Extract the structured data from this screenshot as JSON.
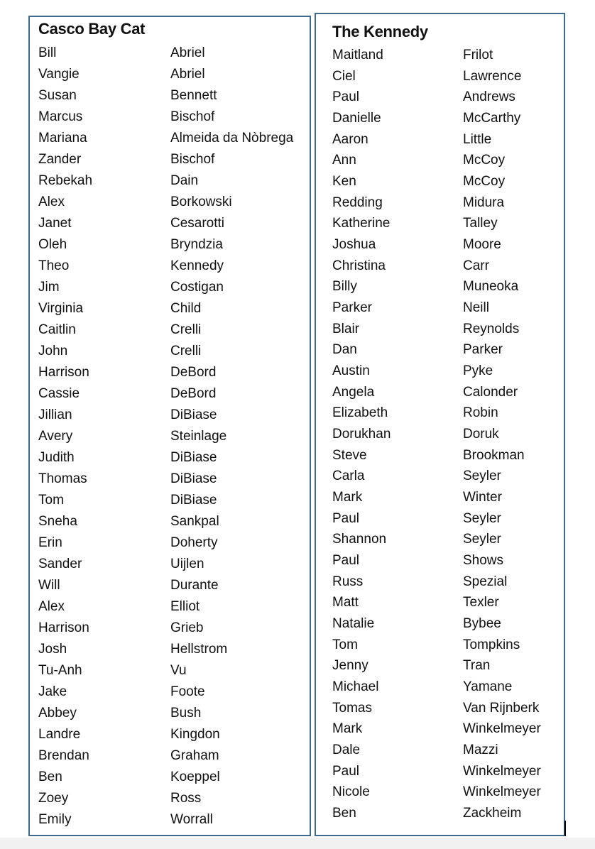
{
  "lists": [
    {
      "title": "Casco Bay Cat",
      "rows": [
        [
          "Bill",
          "Abriel"
        ],
        [
          "Vangie",
          "Abriel"
        ],
        [
          "Susan",
          "Bennett"
        ],
        [
          "Marcus",
          "Bischof"
        ],
        [
          "Mariana",
          "Almeida da Nòbrega"
        ],
        [
          "Zander",
          "Bischof"
        ],
        [
          "Rebekah",
          "Dain"
        ],
        [
          "Alex",
          "Borkowski"
        ],
        [
          "Janet",
          "Cesarotti"
        ],
        [
          "Oleh",
          "Bryndzia"
        ],
        [
          "Theo",
          "Kennedy"
        ],
        [
          "Jim",
          "Costigan"
        ],
        [
          "Virginia",
          "Child"
        ],
        [
          "Caitlin",
          "Crelli"
        ],
        [
          "John",
          "Crelli"
        ],
        [
          "Harrison",
          "DeBord"
        ],
        [
          "Cassie",
          "DeBord"
        ],
        [
          "Jillian",
          "DiBiase"
        ],
        [
          "Avery",
          "Steinlage"
        ],
        [
          "Judith",
          "DiBiase"
        ],
        [
          "Thomas",
          "DiBiase"
        ],
        [
          "Tom",
          "DiBiase"
        ],
        [
          "Sneha",
          "Sankpal"
        ],
        [
          "Erin",
          "Doherty"
        ],
        [
          "Sander",
          "Uijlen"
        ],
        [
          "Will",
          "Durante"
        ],
        [
          "Alex",
          "Elliot"
        ],
        [
          "Harrison",
          "Grieb"
        ],
        [
          "Josh",
          "Hellstrom"
        ],
        [
          "Tu-Anh",
          "Vu"
        ],
        [
          "Jake",
          "Foote"
        ],
        [
          "Abbey",
          "Bush"
        ],
        [
          "Landre",
          "Kingdon"
        ],
        [
          "Brendan",
          "Graham"
        ],
        [
          "Ben",
          "Koeppel"
        ],
        [
          "Zoey",
          "Ross"
        ],
        [
          "Emily",
          "Worrall"
        ]
      ]
    },
    {
      "title": "The Kennedy",
      "rows": [
        [
          "Maitland",
          "Frilot"
        ],
        [
          "Ciel",
          "Lawrence"
        ],
        [
          "Paul",
          "Andrews"
        ],
        [
          "Danielle",
          "McCarthy"
        ],
        [
          "Aaron",
          "Little"
        ],
        [
          "Ann",
          "McCoy"
        ],
        [
          "Ken",
          "McCoy"
        ],
        [
          "Redding",
          "Midura"
        ],
        [
          "Katherine",
          "Talley"
        ],
        [
          "Joshua",
          "Moore"
        ],
        [
          "Christina",
          "Carr"
        ],
        [
          "Billy",
          "Muneoka"
        ],
        [
          "Parker",
          "Neill"
        ],
        [
          "Blair",
          "Reynolds"
        ],
        [
          "Dan",
          "Parker"
        ],
        [
          "Austin",
          "Pyke"
        ],
        [
          "Angela",
          "Calonder"
        ],
        [
          "Elizabeth",
          "Robin"
        ],
        [
          "Dorukhan",
          "Doruk"
        ],
        [
          "Steve",
          "Brookman"
        ],
        [
          "Carla",
          "Seyler"
        ],
        [
          "Mark",
          "Winter"
        ],
        [
          "Paul",
          "Seyler"
        ],
        [
          "Shannon",
          "Seyler"
        ],
        [
          "Paul",
          "Shows"
        ],
        [
          "Russ",
          "Spezial"
        ],
        [
          "Matt",
          "Texler"
        ],
        [
          "Natalie",
          "Bybee"
        ],
        [
          "Tom",
          "Tompkins"
        ],
        [
          "Jenny",
          "Tran"
        ],
        [
          "Michael",
          "Yamane"
        ],
        [
          "Tomas",
          "Van Rijnberk"
        ],
        [
          "Mark",
          "Winkelmeyer"
        ],
        [
          "Dale",
          "Mazzi"
        ],
        [
          "Paul",
          "Winkelmeyer"
        ],
        [
          "Nicole",
          "Winkelmeyer"
        ],
        [
          "Ben",
          "Zackheim"
        ]
      ]
    }
  ]
}
